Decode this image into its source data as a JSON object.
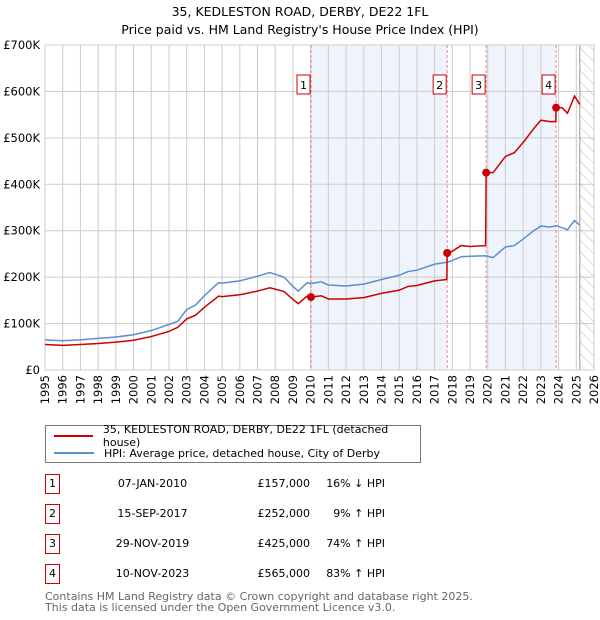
{
  "title": "35, KEDLESTON ROAD, DERBY, DE22 1FL",
  "subtitle": "Price paid vs. HM Land Registry's House Price Index (HPI)",
  "chart_data": {
    "type": "line",
    "ylim": [
      0,
      700000
    ],
    "xlim": [
      1995,
      2026
    ],
    "yticks": [
      {
        "v": 0,
        "label": "£0"
      },
      {
        "v": 100000,
        "label": "£100K"
      },
      {
        "v": 200000,
        "label": "£200K"
      },
      {
        "v": 300000,
        "label": "£300K"
      },
      {
        "v": 400000,
        "label": "£400K"
      },
      {
        "v": 500000,
        "label": "£500K"
      },
      {
        "v": 600000,
        "label": "£600K"
      },
      {
        "v": 700000,
        "label": "£700K"
      }
    ],
    "xticks": [
      "1995",
      "1996",
      "1997",
      "1998",
      "1999",
      "2000",
      "2001",
      "2002",
      "2003",
      "2004",
      "2005",
      "2006",
      "2007",
      "2008",
      "2009",
      "2010",
      "2011",
      "2012",
      "2013",
      "2014",
      "2015",
      "2016",
      "2017",
      "2018",
      "2019",
      "2020",
      "2021",
      "2022",
      "2023",
      "2024",
      "2025",
      "2026"
    ],
    "forecast_from": 2025.2,
    "shaded_ranges": [
      [
        2010.02,
        2017.71
      ],
      [
        2019.91,
        2023.86
      ]
    ],
    "series": [
      {
        "name": "35, KEDLESTON ROAD, DERBY, DE22 1FL (detached house)",
        "color": "#cc0000",
        "points": [
          [
            1995,
            55000
          ],
          [
            1996,
            53000
          ],
          [
            1997,
            55000
          ],
          [
            1998,
            57000
          ],
          [
            1999,
            60000
          ],
          [
            2000,
            64000
          ],
          [
            2001,
            72000
          ],
          [
            2002,
            83000
          ],
          [
            2002.5,
            92000
          ],
          [
            2003,
            110000
          ],
          [
            2003.5,
            118000
          ],
          [
            2004,
            135000
          ],
          [
            2004.8,
            159000
          ],
          [
            2005,
            158000
          ],
          [
            2006,
            162000
          ],
          [
            2007,
            170000
          ],
          [
            2007.7,
            177000
          ],
          [
            2008.5,
            169000
          ],
          [
            2009,
            152000
          ],
          [
            2009.3,
            143000
          ],
          [
            2009.8,
            159000
          ],
          [
            2010.02,
            157000
          ],
          [
            2010.6,
            160000
          ],
          [
            2011,
            153000
          ],
          [
            2012,
            153000
          ],
          [
            2013,
            156000
          ],
          [
            2014,
            165000
          ],
          [
            2015,
            172000
          ],
          [
            2015.5,
            180000
          ],
          [
            2016,
            182000
          ],
          [
            2017,
            192000
          ],
          [
            2017.69,
            195000
          ],
          [
            2017.71,
            252000
          ],
          [
            2018,
            256000
          ],
          [
            2018.5,
            268000
          ],
          [
            2019,
            266000
          ],
          [
            2019.88,
            268000
          ],
          [
            2019.91,
            425000
          ],
          [
            2020.3,
            425000
          ],
          [
            2021,
            460000
          ],
          [
            2021.5,
            468000
          ],
          [
            2022,
            490000
          ],
          [
            2022.6,
            520000
          ],
          [
            2023,
            538000
          ],
          [
            2023.5,
            535000
          ],
          [
            2023.84,
            535000
          ],
          [
            2023.86,
            565000
          ],
          [
            2024.2,
            565000
          ],
          [
            2024.5,
            553000
          ],
          [
            2024.9,
            590000
          ],
          [
            2025.2,
            572000
          ]
        ]
      },
      {
        "name": "HPI: Average price, detached house, City of Derby",
        "color": "#5b8fd4",
        "points": [
          [
            1995,
            65000
          ],
          [
            1996,
            63000
          ],
          [
            1997,
            65000
          ],
          [
            1998,
            68000
          ],
          [
            1999,
            71000
          ],
          [
            2000,
            76000
          ],
          [
            2001,
            85000
          ],
          [
            2002,
            98000
          ],
          [
            2002.5,
            105000
          ],
          [
            2003,
            130000
          ],
          [
            2003.5,
            140000
          ],
          [
            2004,
            160000
          ],
          [
            2004.8,
            188000
          ],
          [
            2005,
            187000
          ],
          [
            2006,
            192000
          ],
          [
            2007,
            202000
          ],
          [
            2007.7,
            210000
          ],
          [
            2008.5,
            200000
          ],
          [
            2009,
            180000
          ],
          [
            2009.3,
            170000
          ],
          [
            2009.8,
            188000
          ],
          [
            2010.02,
            186000
          ],
          [
            2010.6,
            190000
          ],
          [
            2011,
            183000
          ],
          [
            2012,
            181000
          ],
          [
            2013,
            185000
          ],
          [
            2014,
            195000
          ],
          [
            2015,
            204000
          ],
          [
            2015.5,
            212000
          ],
          [
            2016,
            215000
          ],
          [
            2017,
            228000
          ],
          [
            2017.7,
            232000
          ],
          [
            2018,
            236000
          ],
          [
            2018.5,
            244000
          ],
          [
            2019,
            245000
          ],
          [
            2019.9,
            246000
          ],
          [
            2020.3,
            242000
          ],
          [
            2021,
            265000
          ],
          [
            2021.5,
            268000
          ],
          [
            2022,
            282000
          ],
          [
            2022.6,
            300000
          ],
          [
            2023,
            310000
          ],
          [
            2023.5,
            308000
          ],
          [
            2023.9,
            311000
          ],
          [
            2024.5,
            302000
          ],
          [
            2024.9,
            322000
          ],
          [
            2025.2,
            312000
          ]
        ]
      }
    ],
    "sales": [
      {
        "label": "1",
        "x": 2010.02,
        "y": 157000
      },
      {
        "label": "2",
        "x": 2017.71,
        "y": 252000
      },
      {
        "label": "3",
        "x": 2019.91,
        "y": 425000
      },
      {
        "label": "4",
        "x": 2023.86,
        "y": 565000
      }
    ]
  },
  "legend": [
    "35, KEDLESTON ROAD, DERBY, DE22 1FL (detached house)",
    "HPI: Average price, detached house, City of Derby"
  ],
  "transactions": [
    {
      "num": "1",
      "date": "07-JAN-2010",
      "price": "£157,000",
      "hpi": "16% ↓ HPI"
    },
    {
      "num": "2",
      "date": "15-SEP-2017",
      "price": "£252,000",
      "hpi": "9% ↑ HPI"
    },
    {
      "num": "3",
      "date": "29-NOV-2019",
      "price": "£425,000",
      "hpi": "74% ↑ HPI"
    },
    {
      "num": "4",
      "date": "10-NOV-2023",
      "price": "£565,000",
      "hpi": "83% ↑ HPI"
    }
  ],
  "footer": [
    "Contains HM Land Registry data © Crown copyright and database right 2025.",
    "This data is licensed under the Open Government Licence v3.0."
  ]
}
